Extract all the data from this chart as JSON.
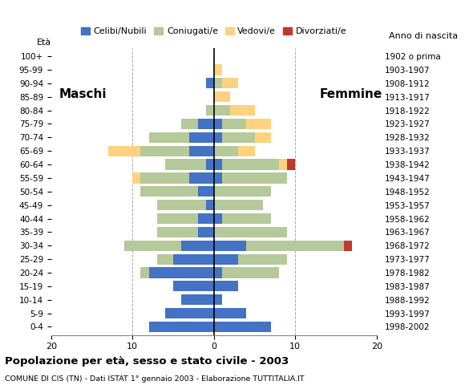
{
  "age_groups": [
    "0-4",
    "5-9",
    "10-14",
    "15-19",
    "20-24",
    "25-29",
    "30-34",
    "35-39",
    "40-44",
    "45-49",
    "50-54",
    "55-59",
    "60-64",
    "65-69",
    "70-74",
    "75-79",
    "80-84",
    "85-89",
    "90-94",
    "95-99",
    "100+"
  ],
  "birth_years": [
    "1998-2002",
    "1993-1997",
    "1988-1992",
    "1983-1987",
    "1978-1982",
    "1973-1977",
    "1968-1972",
    "1963-1967",
    "1958-1962",
    "1953-1957",
    "1948-1952",
    "1943-1947",
    "1938-1942",
    "1933-1937",
    "1928-1932",
    "1923-1927",
    "1918-1922",
    "1913-1917",
    "1908-1912",
    "1903-1907",
    "1902 o prima"
  ],
  "males": {
    "celibi": [
      8,
      6,
      4,
      5,
      8,
      5,
      4,
      2,
      2,
      1,
      2,
      3,
      1,
      3,
      3,
      2,
      0,
      0,
      1,
      0,
      0
    ],
    "coniugati": [
      0,
      0,
      0,
      0,
      1,
      2,
      7,
      5,
      5,
      6,
      7,
      6,
      5,
      6,
      5,
      2,
      1,
      0,
      0,
      0,
      0
    ],
    "vedovi": [
      0,
      0,
      0,
      0,
      0,
      0,
      0,
      0,
      0,
      0,
      0,
      1,
      0,
      4,
      0,
      0,
      0,
      0,
      0,
      0,
      0
    ],
    "divorziati": [
      0,
      0,
      0,
      0,
      0,
      0,
      0,
      0,
      0,
      0,
      0,
      0,
      0,
      0,
      0,
      0,
      0,
      0,
      0,
      0,
      0
    ]
  },
  "females": {
    "nubili": [
      7,
      4,
      1,
      3,
      1,
      3,
      4,
      0,
      1,
      0,
      0,
      1,
      1,
      0,
      1,
      1,
      0,
      0,
      0,
      0,
      0
    ],
    "coniugate": [
      0,
      0,
      0,
      0,
      7,
      6,
      12,
      9,
      6,
      6,
      7,
      8,
      7,
      3,
      4,
      3,
      2,
      0,
      1,
      0,
      0
    ],
    "vedove": [
      0,
      0,
      0,
      0,
      0,
      0,
      0,
      0,
      0,
      0,
      0,
      0,
      1,
      2,
      2,
      3,
      3,
      2,
      2,
      1,
      0
    ],
    "divorziate": [
      0,
      0,
      0,
      0,
      0,
      0,
      1,
      0,
      0,
      0,
      0,
      0,
      1,
      0,
      0,
      0,
      0,
      0,
      0,
      0,
      0
    ]
  },
  "colors": {
    "celibi_nubili": "#4472c4",
    "coniugati_e": "#b5c99a",
    "vedovi_e": "#ffd27f",
    "divorziati_e": "#c0392b"
  },
  "title": "Popolazione per età, sesso e stato civile - 2003",
  "subtitle": "COMUNE DI CIS (TN) - Dati ISTAT 1° gennaio 2003 - Elaborazione TUTTITALIA.IT",
  "eta_label": "Età",
  "anno_label": "Anno di nascita",
  "xlim": 20,
  "legend_labels": [
    "Celibi/Nubili",
    "Coniugati/e",
    "Vedovi/e",
    "Divorziati/e"
  ],
  "maschi_label": "Maschi",
  "femmine_label": "Femmine",
  "xticks": [
    20,
    10,
    0,
    10,
    20
  ]
}
